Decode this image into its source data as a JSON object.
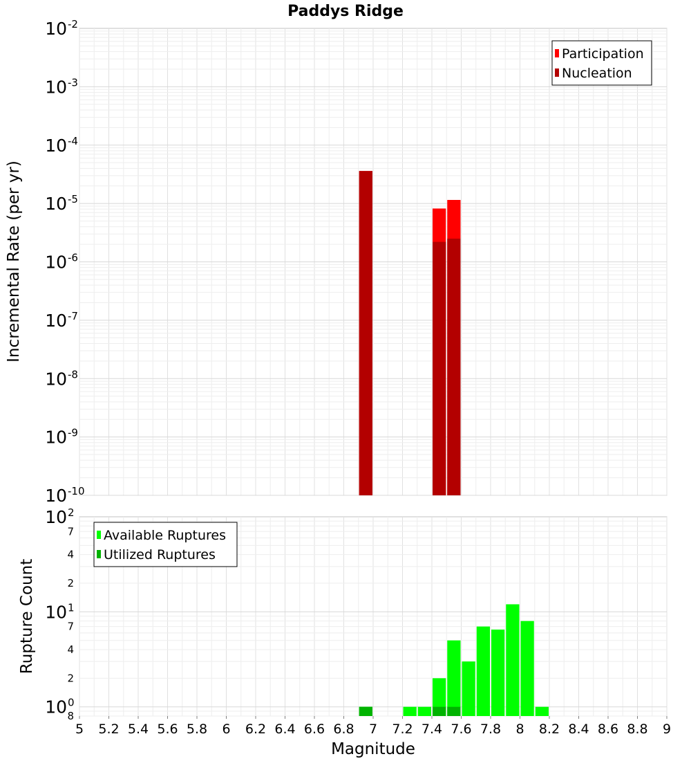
{
  "chart_data": [
    {
      "type": "bar",
      "title": "Paddys Ridge",
      "ylabel": "Incremental Rate (per yr)",
      "xlabel": "",
      "yscale": "log",
      "xlim": [
        5,
        9
      ],
      "ylim": [
        1e-10,
        0.01
      ],
      "grid": true,
      "legend_position": "top-right",
      "bin_width": 0.1,
      "series": [
        {
          "name": "Participation",
          "color": "#ff0000",
          "x": [
            6.95,
            7.45,
            7.55
          ],
          "values": [
            3.6e-05,
            8.2e-06,
            1.15e-05
          ]
        },
        {
          "name": "Nucleation",
          "color": "#b30000",
          "x": [
            6.95,
            7.45,
            7.55
          ],
          "values": [
            3.6e-05,
            2.2e-06,
            2.5e-06
          ]
        }
      ],
      "y_ticks": [
        {
          "base": "10",
          "exp": "-2",
          "value": 0.01
        },
        {
          "base": "10",
          "exp": "-3",
          "value": 0.001
        },
        {
          "base": "10",
          "exp": "-4",
          "value": 0.0001
        },
        {
          "base": "10",
          "exp": "-5",
          "value": 1e-05
        },
        {
          "base": "10",
          "exp": "-6",
          "value": 1e-06
        },
        {
          "base": "10",
          "exp": "-7",
          "value": 1e-07
        },
        {
          "base": "10",
          "exp": "-8",
          "value": 1e-08
        },
        {
          "base": "10",
          "exp": "-9",
          "value": 1e-09
        },
        {
          "base": "10",
          "exp": "-10",
          "value": 1e-10
        }
      ]
    },
    {
      "type": "bar",
      "title": "",
      "ylabel": "Rupture Count",
      "xlabel": "Magnitude",
      "yscale": "log",
      "xlim": [
        5,
        9
      ],
      "ylim": [
        0.8,
        100
      ],
      "grid": true,
      "legend_position": "top-left",
      "bin_width": 0.1,
      "series": [
        {
          "name": "Available Ruptures",
          "color": "#00ff00",
          "x": [
            6.95,
            7.25,
            7.35,
            7.45,
            7.55,
            7.65,
            7.75,
            7.85,
            7.95,
            8.05,
            8.15
          ],
          "values": [
            1,
            1,
            1,
            2,
            5,
            3,
            7,
            6.5,
            12,
            8,
            1
          ]
        },
        {
          "name": "Utilized Ruptures",
          "color": "#00b300",
          "x": [
            6.95,
            7.45,
            7.55
          ],
          "values": [
            1,
            1,
            1
          ]
        }
      ],
      "y_ticks": [
        {
          "base": "10",
          "exp": "2",
          "value": 100
        },
        {
          "base": "10",
          "exp": "1",
          "value": 10
        },
        {
          "base": "10",
          "exp": "0",
          "value": 1
        }
      ],
      "y_minor_labels": [
        {
          "label": "7",
          "value": 70
        },
        {
          "label": "4",
          "value": 40
        },
        {
          "label": "2",
          "value": 20
        },
        {
          "label": "7",
          "value": 7
        },
        {
          "label": "4",
          "value": 4
        },
        {
          "label": "2",
          "value": 2
        },
        {
          "label": "8",
          "value": 0.8
        }
      ],
      "x_ticks": [
        "5",
        "5.2",
        "5.4",
        "5.6",
        "5.8",
        "6",
        "6.2",
        "6.4",
        "6.6",
        "6.8",
        "7",
        "7.2",
        "7.4",
        "7.6",
        "7.8",
        "8",
        "8.2",
        "8.4",
        "8.6",
        "8.8",
        "9"
      ]
    }
  ]
}
